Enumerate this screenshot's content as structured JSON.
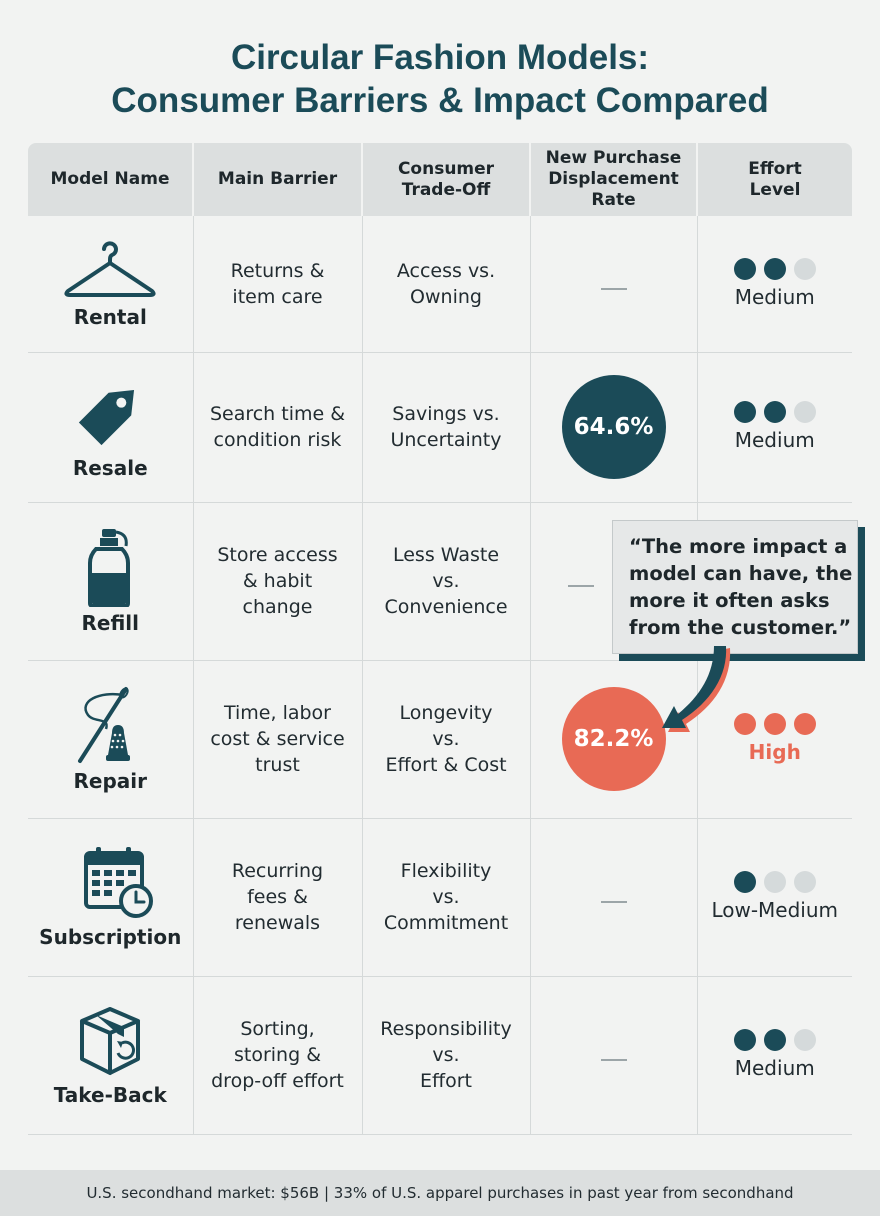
{
  "title": {
    "line1": "Circular Fashion Models:",
    "line2": "Consumer Barriers & Impact Compared"
  },
  "colors": {
    "teal": "#1b4b58",
    "coral": "#e86a55",
    "inactive_dot": "#d5dadb"
  },
  "headers": {
    "model": "Model Name",
    "barrier": "Main Barrier",
    "tradeoff": [
      "Consumer",
      "Trade-Off"
    ],
    "displacement": [
      "New Purchase",
      "Displacement",
      "Rate"
    ],
    "effort": [
      "Effort",
      "Level"
    ]
  },
  "rows": [
    {
      "name": "Rental",
      "icon": "hanger-icon",
      "barrier": [
        "Returns &",
        "item care"
      ],
      "tradeoff": [
        "Access vs.",
        "Owning"
      ],
      "rate": "",
      "effort_label": "Medium",
      "effort_dots": 2
    },
    {
      "name": "Resale",
      "icon": "price-tag-icon",
      "barrier": [
        "Search time &",
        "condition risk"
      ],
      "tradeoff": [
        "Savings vs.",
        "Uncertainty"
      ],
      "rate": "64.6%",
      "effort_label": "Medium",
      "effort_dots": 2
    },
    {
      "name": "Refill",
      "icon": "bottle-icon",
      "barrier": [
        "Store access",
        "& habit",
        "change"
      ],
      "tradeoff": [
        "Less Waste",
        "vs.",
        "Convenience"
      ],
      "rate": "",
      "effort_label": "",
      "effort_dots": 0
    },
    {
      "name": "Repair",
      "icon": "needle-thimble-icon",
      "barrier": [
        "Time, labor",
        "cost & service",
        "trust"
      ],
      "tradeoff": [
        "Longevity",
        "vs.",
        "Effort & Cost"
      ],
      "rate": "82.2%",
      "effort_label": "High",
      "effort_dots": 3
    },
    {
      "name": "Subscription",
      "icon": "calendar-clock-icon",
      "barrier": [
        "Recurring",
        "fees &",
        "renewals"
      ],
      "tradeoff": [
        "Flexibility",
        "vs.",
        "Commitment"
      ],
      "rate": "",
      "effort_label": "Low-Medium",
      "effort_dots": 1
    },
    {
      "name": "Take-Back",
      "icon": "return-box-icon",
      "barrier": [
        "Sorting,",
        "storing &",
        "drop-off effort"
      ],
      "tradeoff": [
        "Responsibility",
        "vs.",
        "Effort"
      ],
      "rate": "",
      "effort_label": "Medium",
      "effort_dots": 2
    }
  ],
  "quote": [
    "“The more impact a",
    "model can have, the",
    "more it often asks",
    "from the customer.”"
  ],
  "footer": "U.S. secondhand market: $56B | 33% of U.S. apparel purchases in past year from secondhand"
}
